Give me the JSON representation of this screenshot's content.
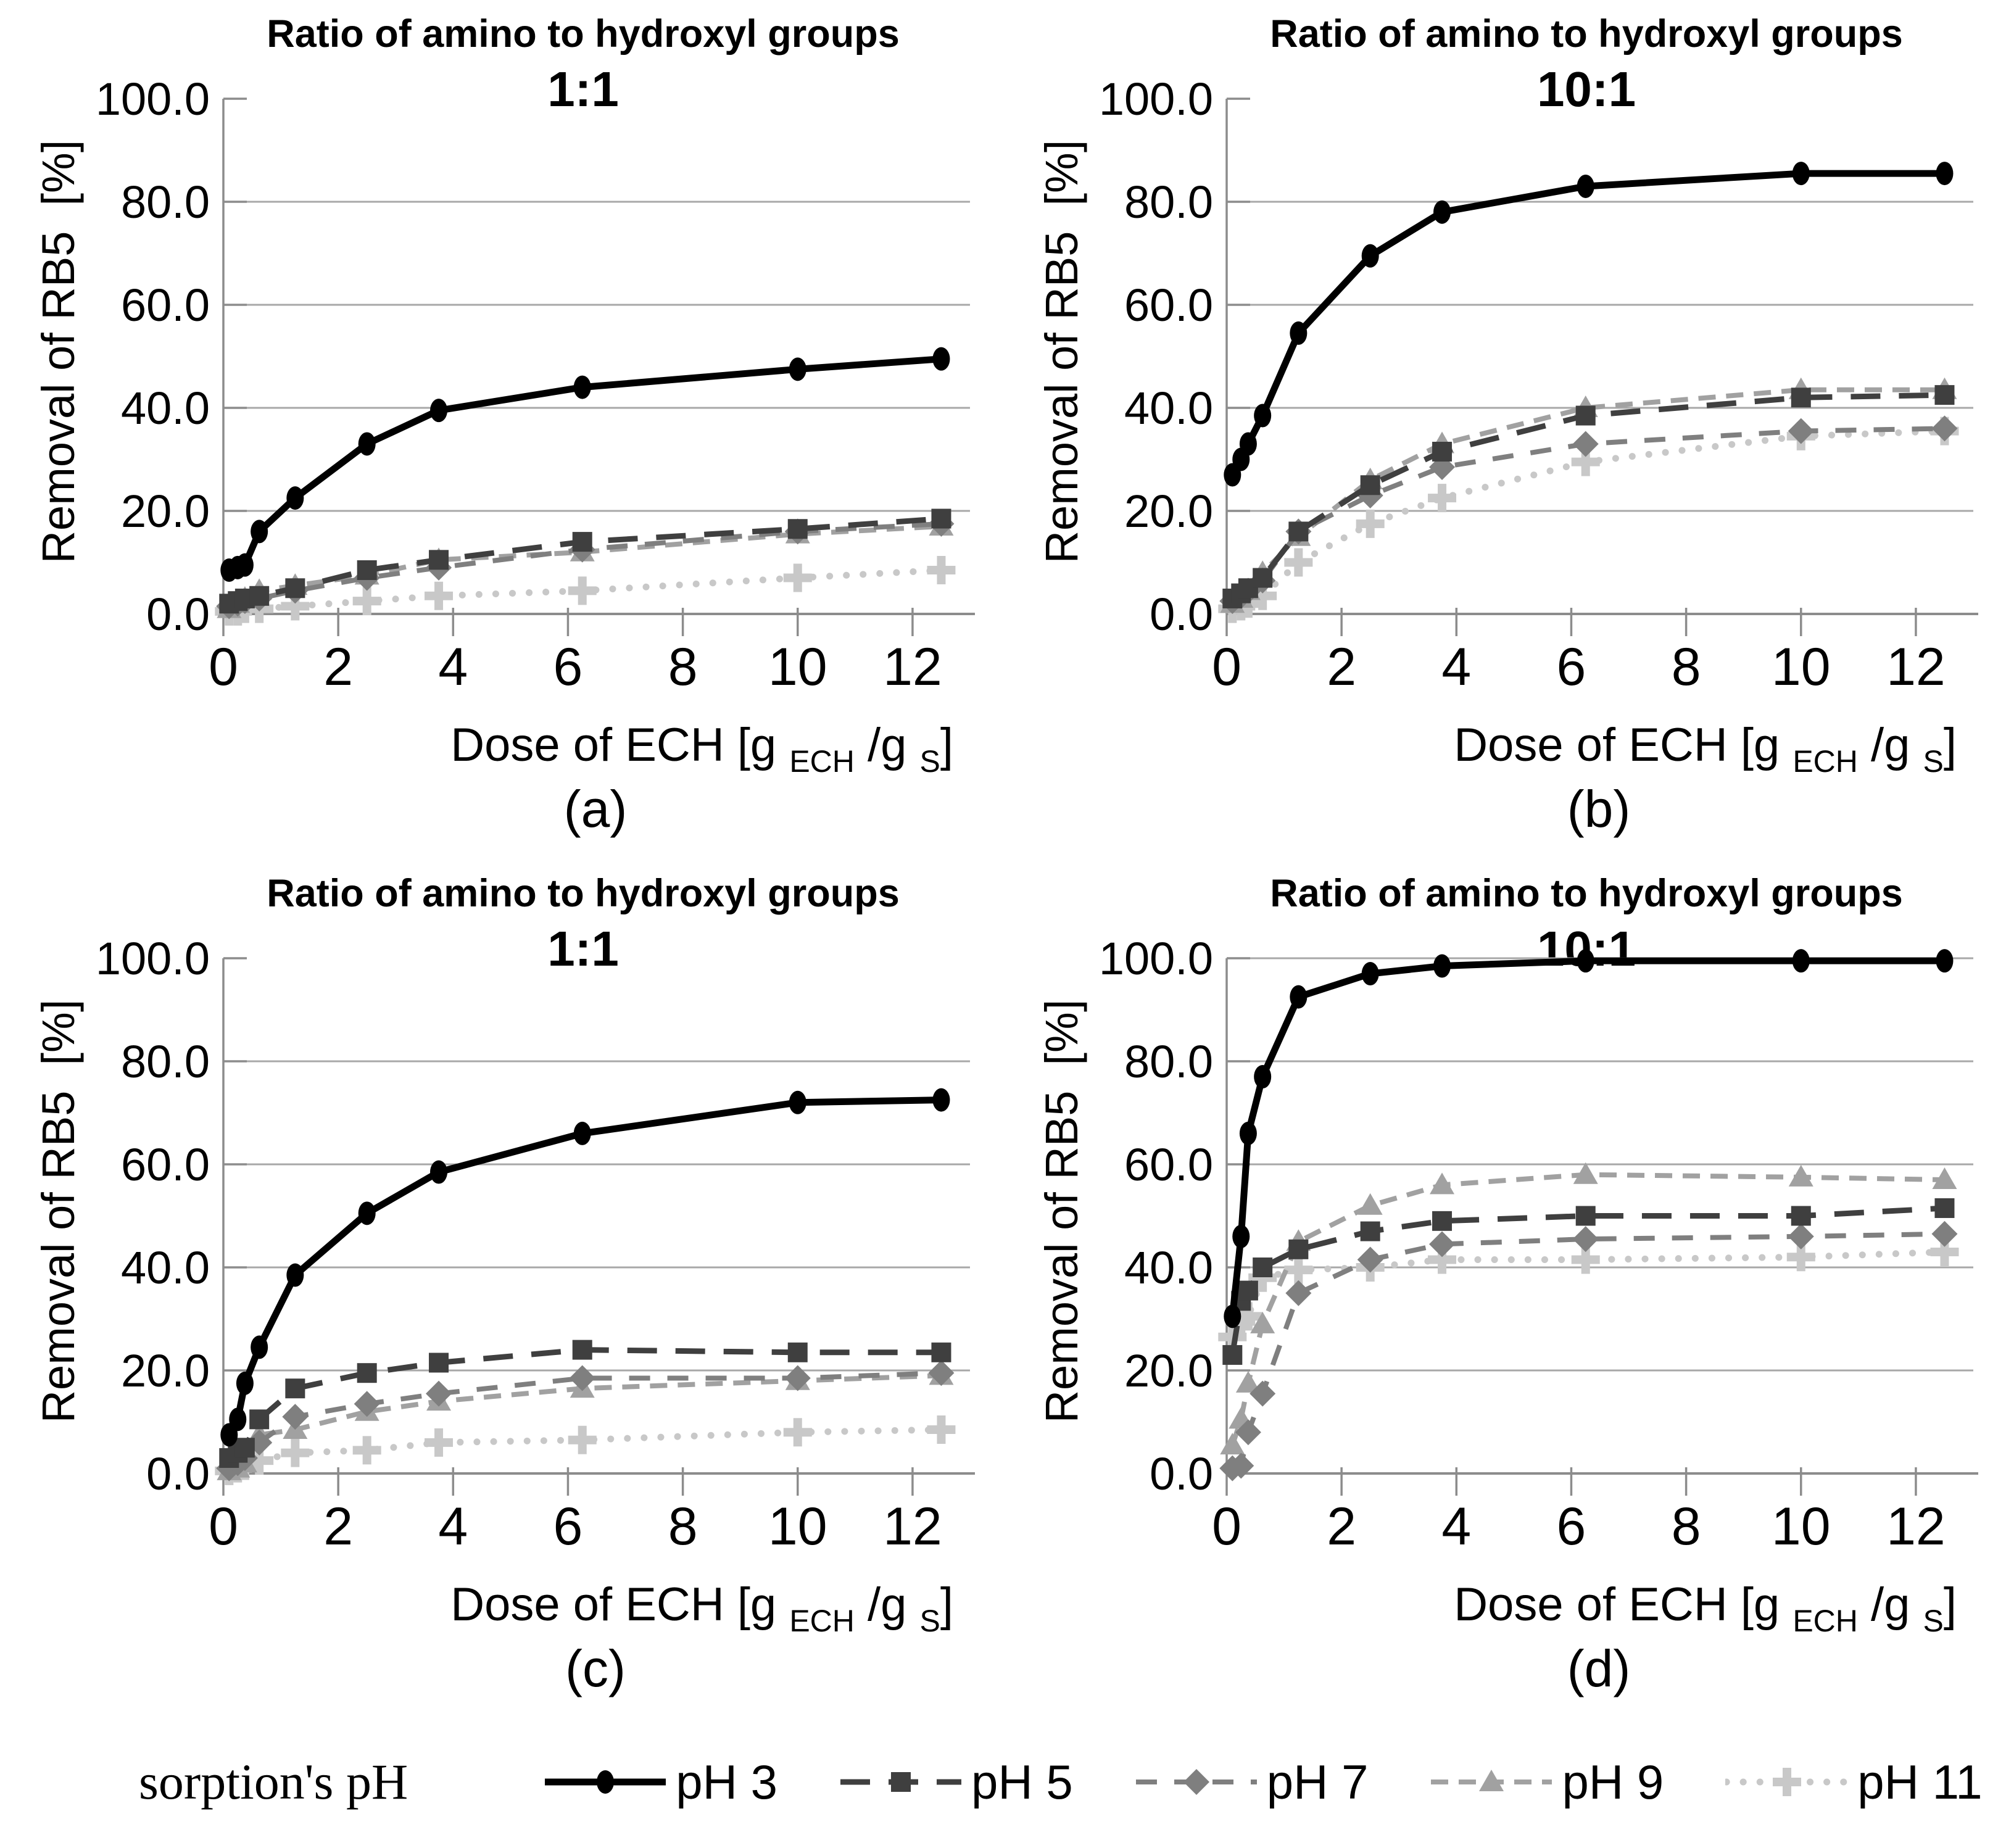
{
  "legend": {
    "heading": "sorption's pH",
    "items": [
      {
        "label": "pH 3",
        "color": "#000000",
        "line_width": 11,
        "dash": null,
        "cap": "butt",
        "marker": "circle"
      },
      {
        "label": "pH 5",
        "color": "#3f3f3f",
        "line_width": 9,
        "dash": "48 30",
        "cap": "butt",
        "marker": "square"
      },
      {
        "label": "pH 7",
        "color": "#7f7f7f",
        "line_width": 8,
        "dash": "34 28",
        "cap": "butt",
        "marker": "diamond"
      },
      {
        "label": "pH 9",
        "color": "#a1a1a1",
        "line_width": 8,
        "dash": "28 17",
        "cap": "butt",
        "marker": "triangle"
      },
      {
        "label": "pH 11",
        "color": "#c8c8c8",
        "line_width": 11,
        "dash": "0.1 27",
        "cap": "round",
        "marker": "plus"
      }
    ]
  },
  "axes_style": {
    "grid_color": "#a8a8a8",
    "axis_color": "#8c8c8c",
    "text_color": "#000000"
  },
  "chart_data": [
    {
      "type": "line",
      "title": "Ratio of amino to hydroxyl groups",
      "subtitle": "1:1",
      "panel_label": "(a)",
      "ylabel": "Removal of RB5  [%]",
      "xlabel_parts": [
        {
          "t": "Dose of ECH [g ",
          "sub": false
        },
        {
          "t": "ECH",
          "sub": true
        },
        {
          "t": " /g ",
          "sub": false
        },
        {
          "t": "S",
          "sub": true
        },
        {
          "t": "]",
          "sub": false
        }
      ],
      "xlim": [
        0,
        13
      ],
      "ylim": [
        0,
        100
      ],
      "xticks": [
        0,
        2,
        4,
        6,
        8,
        10,
        12
      ],
      "yticks": [
        0,
        20,
        40,
        60,
        80,
        100
      ],
      "gridlines": [
        20,
        40,
        60,
        80
      ],
      "legend_position": "bottom",
      "x": [
        0.1,
        0.25,
        0.375,
        0.625,
        1.25,
        2.5,
        3.75,
        6.25,
        10,
        12.5
      ],
      "series": [
        {
          "name": "pH 3",
          "values": [
            8.5,
            9,
            9.5,
            16,
            22.5,
            33,
            39.5,
            44,
            47.5,
            49.5
          ]
        },
        {
          "name": "pH 5",
          "values": [
            2,
            2.5,
            3,
            3.5,
            5,
            8.5,
            10.5,
            14,
            16.5,
            18.5
          ]
        },
        {
          "name": "pH 7",
          "values": [
            1.5,
            2,
            2.5,
            3,
            4.5,
            7,
            9,
            12.5,
            16,
            17.5
          ]
        },
        {
          "name": "pH 9",
          "values": [
            1,
            2,
            3,
            4.5,
            5.5,
            7.5,
            10.5,
            12,
            15.5,
            17
          ]
        },
        {
          "name": "pH 11",
          "values": [
            0.5,
            0.5,
            1,
            1,
            1.5,
            2.5,
            3.5,
            4.5,
            7,
            8.5
          ]
        }
      ]
    },
    {
      "type": "line",
      "title": "Ratio of amino to hydroxyl groups",
      "subtitle": "10:1",
      "panel_label": "(b)",
      "ylabel": "Removal of RB5  [%]",
      "xlabel_parts": [
        {
          "t": "Dose of ECH [g ",
          "sub": false
        },
        {
          "t": "ECH",
          "sub": true
        },
        {
          "t": " /g ",
          "sub": false
        },
        {
          "t": "S",
          "sub": true
        },
        {
          "t": "]",
          "sub": false
        }
      ],
      "xlim": [
        0,
        13
      ],
      "ylim": [
        0,
        100
      ],
      "xticks": [
        0,
        2,
        4,
        6,
        8,
        10,
        12
      ],
      "yticks": [
        0,
        20,
        40,
        60,
        80,
        100
      ],
      "gridlines": [
        20,
        40,
        60,
        80
      ],
      "legend_position": "bottom",
      "x": [
        0.1,
        0.25,
        0.375,
        0.625,
        1.25,
        2.5,
        3.75,
        6.25,
        10,
        12.5
      ],
      "series": [
        {
          "name": "pH 3",
          "values": [
            27,
            30,
            33,
            38.5,
            54.5,
            69.5,
            78,
            83,
            85.5,
            85.5
          ]
        },
        {
          "name": "pH 5",
          "values": [
            3,
            4,
            5,
            7,
            16,
            25,
            31.5,
            38.5,
            42,
            42.5
          ]
        },
        {
          "name": "pH 7",
          "values": [
            2.5,
            3.5,
            4.5,
            6.5,
            16,
            23,
            28.5,
            33,
            35.5,
            36
          ]
        },
        {
          "name": "pH 9",
          "values": [
            2,
            3,
            4.5,
            8,
            15,
            26,
            33,
            40,
            43.5,
            43.5
          ]
        },
        {
          "name": "pH 11",
          "values": [
            1,
            1.5,
            2,
            3.5,
            10,
            17.5,
            22.5,
            29.5,
            34.5,
            35.5
          ]
        }
      ]
    },
    {
      "type": "line",
      "title": "Ratio of amino to hydroxyl groups",
      "subtitle": "1:1",
      "panel_label": "(c)",
      "ylabel": "Removal of RB5  [%]",
      "xlabel_parts": [
        {
          "t": "Dose of ECH [g ",
          "sub": false
        },
        {
          "t": "ECH",
          "sub": true
        },
        {
          "t": " /g ",
          "sub": false
        },
        {
          "t": "S",
          "sub": true
        },
        {
          "t": "]",
          "sub": false
        }
      ],
      "xlim": [
        0,
        13
      ],
      "ylim": [
        0,
        100
      ],
      "xticks": [
        0,
        2,
        4,
        6,
        8,
        10,
        12
      ],
      "yticks": [
        0,
        20,
        40,
        60,
        80,
        100
      ],
      "gridlines": [
        20,
        40,
        60,
        80
      ],
      "legend_position": "bottom",
      "x": [
        0.1,
        0.25,
        0.375,
        0.625,
        1.25,
        2.5,
        3.75,
        6.25,
        10,
        12.5
      ],
      "series": [
        {
          "name": "pH 3",
          "values": [
            7.5,
            10.5,
            17.5,
            24.5,
            38.5,
            50.5,
            58.5,
            66,
            72,
            72.5
          ]
        },
        {
          "name": "pH 5",
          "values": [
            3,
            4,
            5,
            10.5,
            16.5,
            19.5,
            21.5,
            24,
            23.5,
            23.5
          ]
        },
        {
          "name": "pH 7",
          "values": [
            1,
            2,
            3,
            6,
            11,
            13.5,
            15.5,
            18.5,
            18.5,
            19.5
          ]
        },
        {
          "name": "pH 9",
          "values": [
            0.5,
            1,
            2,
            7.5,
            8.5,
            12,
            14,
            16.5,
            18,
            19
          ]
        },
        {
          "name": "pH 11",
          "values": [
            0.5,
            1,
            1.5,
            2.5,
            4,
            4.5,
            6,
            6.5,
            8,
            8.5
          ]
        }
      ]
    },
    {
      "type": "line",
      "title": "Ratio of amino to hydroxyl groups",
      "subtitle": "10:1",
      "panel_label": "(d)",
      "ylabel": "Removal of RB5  [%]",
      "xlabel_parts": [
        {
          "t": "Dose of ECH [g ",
          "sub": false
        },
        {
          "t": "ECH",
          "sub": true
        },
        {
          "t": " /g ",
          "sub": false
        },
        {
          "t": "S",
          "sub": true
        },
        {
          "t": "]",
          "sub": false
        }
      ],
      "xlim": [
        0,
        13
      ],
      "ylim": [
        0,
        100
      ],
      "xticks": [
        0,
        2,
        4,
        6,
        8,
        10,
        12
      ],
      "yticks": [
        0,
        20,
        40,
        60,
        80,
        100
      ],
      "gridlines": [
        20,
        40,
        60,
        80,
        100
      ],
      "legend_position": "bottom",
      "x": [
        0.1,
        0.25,
        0.375,
        0.625,
        1.25,
        2.5,
        3.75,
        6.25,
        10,
        12.5
      ],
      "series": [
        {
          "name": "pH 3",
          "values": [
            30.5,
            46,
            66,
            77,
            92.5,
            97,
            98.5,
            99.5,
            99.5,
            99.5
          ]
        },
        {
          "name": "pH 5",
          "values": [
            23,
            33.5,
            35.5,
            40,
            43.5,
            47,
            49,
            50,
            50,
            51.5
          ]
        },
        {
          "name": "pH 7",
          "values": [
            1,
            1.5,
            8,
            15.5,
            35,
            41.5,
            44.5,
            45.5,
            46,
            46.5
          ]
        },
        {
          "name": "pH 9",
          "values": [
            5.5,
            10.5,
            17.5,
            29,
            45,
            52,
            56,
            58,
            57.5,
            57
          ]
        },
        {
          "name": "pH 11",
          "values": [
            26.5,
            29.5,
            30.5,
            38,
            39.5,
            40,
            41.5,
            41.5,
            42,
            43
          ]
        }
      ]
    }
  ]
}
